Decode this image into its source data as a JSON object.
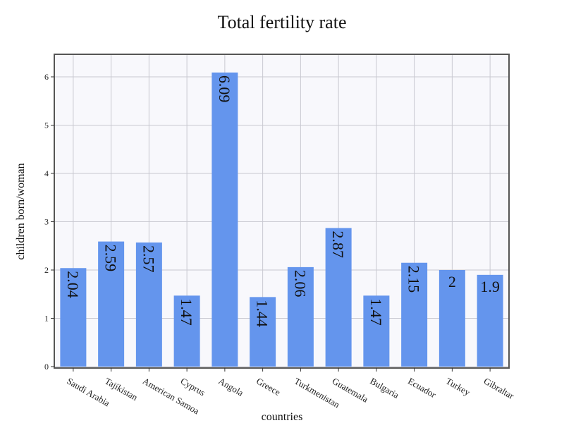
{
  "chart_data": {
    "type": "bar",
    "title": "Total fertility rate",
    "xlabel": "countries",
    "ylabel": "children born/woman",
    "categories": [
      "Saudi Arabia",
      "Tajikistan",
      "American Samoa",
      "Cyprus",
      "Angola",
      "Greece",
      "Turkmenistan",
      "Guatemala",
      "Bulgaria",
      "Ecuador",
      "Turkey",
      "Gibraltar"
    ],
    "values": [
      2.04,
      2.59,
      2.57,
      1.47,
      6.09,
      1.44,
      2.06,
      2.87,
      1.47,
      2.15,
      2,
      1.9
    ],
    "data_labels": [
      "2.04",
      "2.59",
      "2.57",
      "1.47",
      "6.09",
      "1.44",
      "2.06",
      "2.87",
      "1.47",
      "2.15",
      "2",
      "1.9"
    ],
    "yticks": [
      0,
      1,
      2,
      3,
      4,
      5,
      6
    ],
    "ylim": [
      0,
      6.35
    ],
    "grid": true,
    "colors": {
      "bar": "#6495ED",
      "plot_background": "#F8F8FC",
      "grid": "#C8C8D0",
      "frame": "#555555"
    }
  }
}
